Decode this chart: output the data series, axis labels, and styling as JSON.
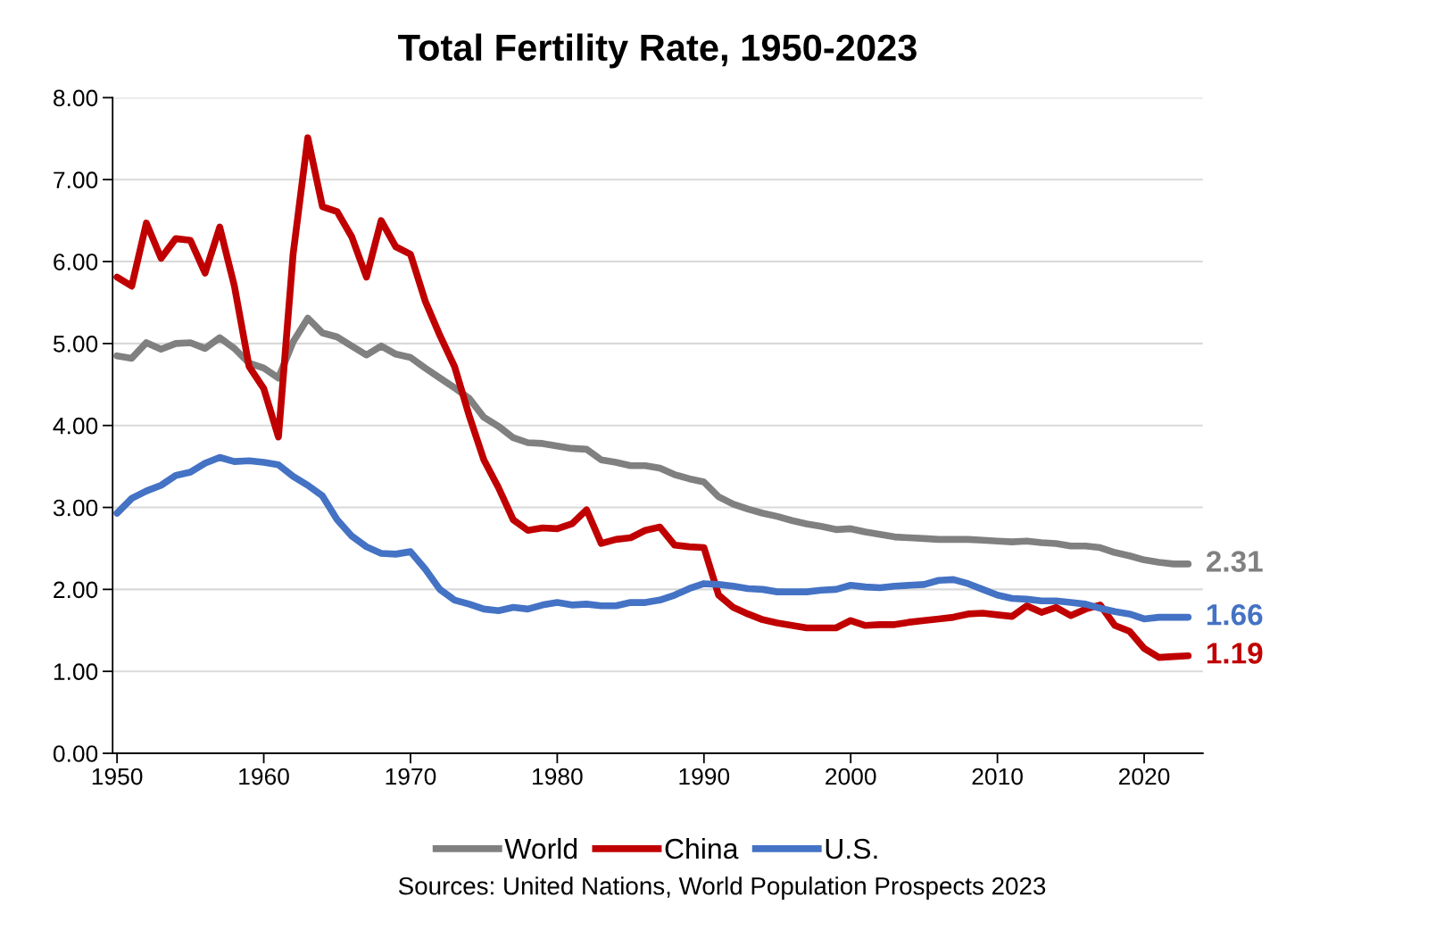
{
  "chart_data": {
    "type": "line",
    "title": "Total Fertility Rate, 1950-2023",
    "x": [
      1950,
      1951,
      1952,
      1953,
      1954,
      1955,
      1956,
      1957,
      1958,
      1959,
      1960,
      1961,
      1962,
      1963,
      1964,
      1965,
      1966,
      1967,
      1968,
      1969,
      1970,
      1971,
      1972,
      1973,
      1974,
      1975,
      1976,
      1977,
      1978,
      1979,
      1980,
      1981,
      1982,
      1983,
      1984,
      1985,
      1986,
      1987,
      1988,
      1989,
      1990,
      1991,
      1992,
      1993,
      1994,
      1995,
      1996,
      1997,
      1998,
      1999,
      2000,
      2001,
      2002,
      2003,
      2004,
      2005,
      2006,
      2007,
      2008,
      2009,
      2010,
      2011,
      2012,
      2013,
      2014,
      2015,
      2016,
      2017,
      2018,
      2019,
      2020,
      2021,
      2022,
      2023
    ],
    "series": [
      {
        "name": "World",
        "color": "#808080",
        "values": [
          4.85,
          4.82,
          5.01,
          4.93,
          5.0,
          5.01,
          4.94,
          5.07,
          4.94,
          4.76,
          4.7,
          4.58,
          5.02,
          5.31,
          5.13,
          5.08,
          4.97,
          4.86,
          4.97,
          4.87,
          4.83,
          4.7,
          4.58,
          4.46,
          4.33,
          4.1,
          3.99,
          3.85,
          3.79,
          3.78,
          3.75,
          3.72,
          3.71,
          3.58,
          3.55,
          3.51,
          3.51,
          3.48,
          3.4,
          3.35,
          3.31,
          3.13,
          3.04,
          2.98,
          2.93,
          2.89,
          2.84,
          2.8,
          2.77,
          2.73,
          2.74,
          2.7,
          2.67,
          2.64,
          2.63,
          2.62,
          2.61,
          2.61,
          2.61,
          2.6,
          2.59,
          2.58,
          2.59,
          2.57,
          2.56,
          2.53,
          2.53,
          2.51,
          2.45,
          2.41,
          2.36,
          2.33,
          2.31,
          2.31
        ],
        "value_labels": [
          null,
          null,
          null,
          null,
          null,
          null,
          null,
          null,
          null,
          null,
          null,
          null,
          null,
          null,
          null,
          null,
          null,
          null,
          null,
          null,
          null,
          null,
          null,
          null,
          null,
          null,
          null,
          null,
          null,
          null,
          null,
          null,
          null,
          null,
          null,
          null,
          null,
          null,
          null,
          null,
          null,
          null,
          null,
          null,
          null,
          null,
          null,
          null,
          null,
          null,
          null,
          null,
          null,
          null,
          null,
          null,
          null,
          null,
          null,
          null,
          null,
          null,
          null,
          null,
          null,
          null,
          null,
          null,
          null,
          null,
          null,
          null,
          null,
          "2.31"
        ]
      },
      {
        "name": "China",
        "color": "#c00000",
        "values": [
          5.81,
          5.7,
          6.47,
          6.04,
          6.28,
          6.26,
          5.86,
          6.42,
          5.7,
          4.72,
          4.45,
          3.86,
          6.09,
          7.51,
          6.67,
          6.61,
          6.3,
          5.81,
          6.5,
          6.18,
          6.09,
          5.52,
          5.1,
          4.72,
          4.12,
          3.58,
          3.24,
          2.85,
          2.72,
          2.75,
          2.74,
          2.8,
          2.97,
          2.56,
          2.61,
          2.63,
          2.72,
          2.76,
          2.54,
          2.52,
          2.51,
          1.93,
          1.78,
          1.7,
          1.63,
          1.59,
          1.56,
          1.53,
          1.53,
          1.53,
          1.62,
          1.56,
          1.57,
          1.57,
          1.6,
          1.62,
          1.64,
          1.66,
          1.7,
          1.71,
          1.69,
          1.67,
          1.8,
          1.72,
          1.78,
          1.68,
          1.76,
          1.81,
          1.56,
          1.49,
          1.28,
          1.17,
          1.18,
          1.19
        ],
        "value_labels": [
          null,
          null,
          null,
          null,
          null,
          null,
          null,
          null,
          null,
          null,
          null,
          null,
          null,
          null,
          null,
          null,
          null,
          null,
          null,
          null,
          null,
          null,
          null,
          null,
          null,
          null,
          null,
          null,
          null,
          null,
          null,
          null,
          null,
          null,
          null,
          null,
          null,
          null,
          null,
          null,
          null,
          null,
          null,
          null,
          null,
          null,
          null,
          null,
          null,
          null,
          null,
          null,
          null,
          null,
          null,
          null,
          null,
          null,
          null,
          null,
          null,
          null,
          null,
          null,
          null,
          null,
          null,
          null,
          null,
          null,
          null,
          null,
          null,
          "1.19"
        ]
      },
      {
        "name": "U.S.",
        "color": "#4472c4",
        "values": [
          2.93,
          3.11,
          3.2,
          3.27,
          3.39,
          3.43,
          3.54,
          3.61,
          3.56,
          3.57,
          3.55,
          3.52,
          3.38,
          3.27,
          3.14,
          2.85,
          2.65,
          2.52,
          2.44,
          2.43,
          2.46,
          2.25,
          2.0,
          1.87,
          1.82,
          1.76,
          1.74,
          1.78,
          1.76,
          1.81,
          1.84,
          1.81,
          1.82,
          1.8,
          1.8,
          1.84,
          1.84,
          1.87,
          1.93,
          2.01,
          2.07,
          2.06,
          2.04,
          2.01,
          2.0,
          1.97,
          1.97,
          1.97,
          1.99,
          2.0,
          2.05,
          2.03,
          2.02,
          2.04,
          2.05,
          2.06,
          2.11,
          2.12,
          2.07,
          2.0,
          1.93,
          1.89,
          1.88,
          1.86,
          1.86,
          1.84,
          1.82,
          1.77,
          1.73,
          1.7,
          1.64,
          1.66,
          1.66,
          1.66
        ],
        "value_labels": [
          null,
          null,
          null,
          null,
          null,
          null,
          null,
          null,
          null,
          null,
          null,
          null,
          null,
          null,
          null,
          null,
          null,
          null,
          null,
          null,
          null,
          null,
          null,
          null,
          null,
          null,
          null,
          null,
          null,
          null,
          null,
          null,
          null,
          null,
          null,
          null,
          null,
          null,
          null,
          null,
          null,
          null,
          null,
          null,
          null,
          null,
          null,
          null,
          null,
          null,
          null,
          null,
          null,
          null,
          null,
          null,
          null,
          null,
          null,
          null,
          null,
          null,
          null,
          null,
          null,
          null,
          null,
          null,
          null,
          null,
          null,
          null,
          null,
          "1.66"
        ]
      }
    ],
    "xlim": [
      1949.7,
      2024
    ],
    "xticks": [
      1950,
      1960,
      1970,
      1980,
      1990,
      2000,
      2010,
      2020
    ],
    "ylim": [
      0,
      8
    ],
    "yticks": [
      {
        "value": 0,
        "label": "0.00"
      },
      {
        "value": 1,
        "label": "1.00"
      },
      {
        "value": 2,
        "label": "2.00"
      },
      {
        "value": 3,
        "label": "3.00"
      },
      {
        "value": 4,
        "label": "4.00"
      },
      {
        "value": 5,
        "label": "5.00"
      },
      {
        "value": 6,
        "label": "6.00"
      },
      {
        "value": 7,
        "label": "7.00"
      },
      {
        "value": 8,
        "label": "8.00"
      }
    ],
    "grid": "y",
    "legend": "bottom",
    "annotations": [
      "Sources: United Nations, World Population Prospects 2023"
    ]
  }
}
